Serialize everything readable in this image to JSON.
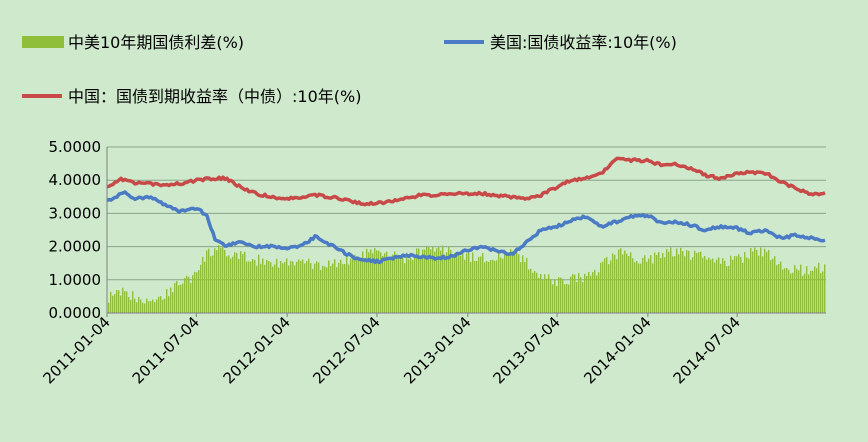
{
  "chart_data": {
    "type": "line",
    "title": "",
    "xlabel": "",
    "ylabel": "",
    "ylim": [
      0,
      5
    ],
    "y_ticks": [
      "0.0000",
      "1.0000",
      "2.0000",
      "3.0000",
      "4.0000",
      "5.0000"
    ],
    "x_ticks": [
      "2011-01-04",
      "2011-07-04",
      "2012-01-04",
      "2012-07-04",
      "2013-01-04",
      "2013-07-04",
      "2014-01-04",
      "2014-07-04"
    ],
    "x_range": [
      "2011-01-04",
      "2014-12-31"
    ],
    "grid": "horizontal",
    "legend_position": "top",
    "colors": {
      "background": "#cfe9cd",
      "spread": "#8fbf3a",
      "us": "#4a7bc4",
      "cn": "#c84a48",
      "grid": "#8aa58a"
    },
    "series": [
      {
        "name": "中美10年期国债利差(%)",
        "kind": "bar",
        "points": [
          [
            "2011-01-04",
            0.45
          ],
          [
            "2011-02-01",
            0.6
          ],
          [
            "2011-03-01",
            0.5
          ],
          [
            "2011-04-01",
            0.4
          ],
          [
            "2011-05-01",
            0.55
          ],
          [
            "2011-06-01",
            0.95
          ],
          [
            "2011-07-04",
            1.15
          ],
          [
            "2011-07-20",
            1.7
          ],
          [
            "2011-08-10",
            1.95
          ],
          [
            "2011-09-01",
            1.75
          ],
          [
            "2011-10-01",
            1.7
          ],
          [
            "2011-11-01",
            1.6
          ],
          [
            "2011-12-01",
            1.55
          ],
          [
            "2012-01-04",
            1.5
          ],
          [
            "2012-02-01",
            1.55
          ],
          [
            "2012-03-01",
            1.4
          ],
          [
            "2012-04-01",
            1.5
          ],
          [
            "2012-05-01",
            1.55
          ],
          [
            "2012-06-01",
            1.75
          ],
          [
            "2012-07-04",
            1.8
          ],
          [
            "2012-08-01",
            1.7
          ],
          [
            "2012-09-01",
            1.65
          ],
          [
            "2012-10-01",
            1.85
          ],
          [
            "2012-11-01",
            1.9
          ],
          [
            "2012-12-01",
            1.85
          ],
          [
            "2013-01-04",
            1.7
          ],
          [
            "2013-02-01",
            1.65
          ],
          [
            "2013-03-01",
            1.7
          ],
          [
            "2013-04-01",
            1.8
          ],
          [
            "2013-05-01",
            1.55
          ],
          [
            "2013-06-01",
            1.1
          ],
          [
            "2013-07-04",
            0.9
          ],
          [
            "2013-08-01",
            1.05
          ],
          [
            "2013-09-01",
            1.1
          ],
          [
            "2013-10-01",
            1.4
          ],
          [
            "2013-11-01",
            1.8
          ],
          [
            "2013-12-01",
            1.7
          ],
          [
            "2014-01-04",
            1.6
          ],
          [
            "2014-02-01",
            1.8
          ],
          [
            "2014-03-01",
            1.85
          ],
          [
            "2014-04-01",
            1.75
          ],
          [
            "2014-05-01",
            1.65
          ],
          [
            "2014-06-01",
            1.55
          ],
          [
            "2014-07-04",
            1.6
          ],
          [
            "2014-08-01",
            1.8
          ],
          [
            "2014-09-01",
            1.85
          ],
          [
            "2014-10-01",
            1.45
          ],
          [
            "2014-11-01",
            1.3
          ],
          [
            "2014-12-01",
            1.3
          ],
          [
            "2014-12-31",
            1.4
          ]
        ]
      },
      {
        "name": "美国:国债收益率:10年(%)",
        "kind": "line",
        "points": [
          [
            "2011-01-04",
            3.35
          ],
          [
            "2011-02-08",
            3.65
          ],
          [
            "2011-03-01",
            3.45
          ],
          [
            "2011-04-01",
            3.5
          ],
          [
            "2011-05-01",
            3.25
          ],
          [
            "2011-06-01",
            3.05
          ],
          [
            "2011-07-04",
            3.15
          ],
          [
            "2011-07-25",
            2.95
          ],
          [
            "2011-08-10",
            2.25
          ],
          [
            "2011-09-01",
            2.0
          ],
          [
            "2011-10-01",
            2.15
          ],
          [
            "2011-11-01",
            2.0
          ],
          [
            "2011-12-01",
            2.0
          ],
          [
            "2012-01-04",
            1.95
          ],
          [
            "2012-02-01",
            2.0
          ],
          [
            "2012-03-01",
            2.3
          ],
          [
            "2012-04-01",
            2.05
          ],
          [
            "2012-05-01",
            1.8
          ],
          [
            "2012-06-01",
            1.6
          ],
          [
            "2012-07-04",
            1.55
          ],
          [
            "2012-08-01",
            1.65
          ],
          [
            "2012-09-01",
            1.75
          ],
          [
            "2012-10-01",
            1.7
          ],
          [
            "2012-11-01",
            1.65
          ],
          [
            "2012-12-01",
            1.7
          ],
          [
            "2013-01-04",
            1.9
          ],
          [
            "2013-02-01",
            2.0
          ],
          [
            "2013-03-01",
            1.9
          ],
          [
            "2013-04-01",
            1.75
          ],
          [
            "2013-05-01",
            2.1
          ],
          [
            "2013-06-01",
            2.5
          ],
          [
            "2013-07-04",
            2.6
          ],
          [
            "2013-08-01",
            2.8
          ],
          [
            "2013-09-01",
            2.9
          ],
          [
            "2013-10-01",
            2.6
          ],
          [
            "2013-11-01",
            2.75
          ],
          [
            "2013-12-01",
            2.9
          ],
          [
            "2014-01-04",
            2.95
          ],
          [
            "2014-02-01",
            2.7
          ],
          [
            "2014-03-01",
            2.75
          ],
          [
            "2014-04-01",
            2.65
          ],
          [
            "2014-05-01",
            2.5
          ],
          [
            "2014-06-01",
            2.6
          ],
          [
            "2014-07-04",
            2.55
          ],
          [
            "2014-08-01",
            2.4
          ],
          [
            "2014-09-01",
            2.5
          ],
          [
            "2014-10-01",
            2.25
          ],
          [
            "2014-11-01",
            2.35
          ],
          [
            "2014-12-01",
            2.25
          ],
          [
            "2014-12-31",
            2.2
          ]
        ]
      },
      {
        "name": "中国：国债到期收益率（中债）:10年(%)",
        "kind": "line",
        "points": [
          [
            "2011-01-04",
            3.8
          ],
          [
            "2011-02-01",
            4.05
          ],
          [
            "2011-03-01",
            3.9
          ],
          [
            "2011-04-01",
            3.9
          ],
          [
            "2011-05-01",
            3.85
          ],
          [
            "2011-06-01",
            3.9
          ],
          [
            "2011-07-04",
            4.0
          ],
          [
            "2011-08-01",
            4.05
          ],
          [
            "2011-09-01",
            4.05
          ],
          [
            "2011-10-01",
            3.8
          ],
          [
            "2011-11-01",
            3.6
          ],
          [
            "2011-12-01",
            3.5
          ],
          [
            "2012-01-04",
            3.45
          ],
          [
            "2012-02-01",
            3.5
          ],
          [
            "2012-03-01",
            3.55
          ],
          [
            "2012-04-01",
            3.5
          ],
          [
            "2012-05-01",
            3.4
          ],
          [
            "2012-06-01",
            3.3
          ],
          [
            "2012-07-04",
            3.3
          ],
          [
            "2012-08-01",
            3.35
          ],
          [
            "2012-09-01",
            3.45
          ],
          [
            "2012-10-01",
            3.55
          ],
          [
            "2012-11-01",
            3.55
          ],
          [
            "2012-12-01",
            3.6
          ],
          [
            "2013-01-04",
            3.6
          ],
          [
            "2013-02-01",
            3.6
          ],
          [
            "2013-03-01",
            3.55
          ],
          [
            "2013-04-01",
            3.5
          ],
          [
            "2013-05-01",
            3.45
          ],
          [
            "2013-06-01",
            3.55
          ],
          [
            "2013-07-04",
            3.8
          ],
          [
            "2013-08-01",
            4.0
          ],
          [
            "2013-09-01",
            4.05
          ],
          [
            "2013-10-01",
            4.2
          ],
          [
            "2013-11-01",
            4.65
          ],
          [
            "2013-12-01",
            4.6
          ],
          [
            "2014-01-04",
            4.6
          ],
          [
            "2014-02-01",
            4.45
          ],
          [
            "2014-03-01",
            4.5
          ],
          [
            "2014-04-01",
            4.35
          ],
          [
            "2014-05-01",
            4.15
          ],
          [
            "2014-06-01",
            4.05
          ],
          [
            "2014-07-04",
            4.2
          ],
          [
            "2014-08-01",
            4.25
          ],
          [
            "2014-09-01",
            4.2
          ],
          [
            "2014-10-01",
            3.95
          ],
          [
            "2014-11-01",
            3.75
          ],
          [
            "2014-12-01",
            3.55
          ],
          [
            "2014-12-31",
            3.6
          ]
        ]
      }
    ]
  }
}
